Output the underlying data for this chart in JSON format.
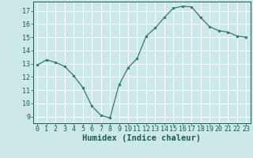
{
  "x": [
    0,
    1,
    2,
    3,
    4,
    5,
    6,
    7,
    8,
    9,
    10,
    11,
    12,
    13,
    14,
    15,
    16,
    17,
    18,
    19,
    20,
    21,
    22,
    23
  ],
  "y": [
    12.9,
    13.3,
    13.1,
    12.8,
    12.1,
    11.2,
    9.8,
    9.1,
    8.9,
    11.4,
    12.7,
    13.4,
    15.1,
    15.7,
    16.5,
    17.2,
    17.35,
    17.3,
    16.5,
    15.8,
    15.5,
    15.4,
    15.1,
    15.0
  ],
  "xlabel": "Humidex (Indice chaleur)",
  "ylim": [
    8.5,
    17.7
  ],
  "xlim": [
    -0.5,
    23.5
  ],
  "yticks": [
    9,
    10,
    11,
    12,
    13,
    14,
    15,
    16,
    17
  ],
  "xticks": [
    0,
    1,
    2,
    3,
    4,
    5,
    6,
    7,
    8,
    9,
    10,
    11,
    12,
    13,
    14,
    15,
    16,
    17,
    18,
    19,
    20,
    21,
    22,
    23
  ],
  "line_color": "#2e7d6e",
  "marker_color": "#2e7d6e",
  "bg_color": "#cce8e8",
  "grid_color": "#ffffff",
  "tick_label_color": "#1a5c50",
  "xlabel_color": "#1a5c50",
  "xlabel_fontsize": 7.5,
  "tick_fontsize": 6.0
}
